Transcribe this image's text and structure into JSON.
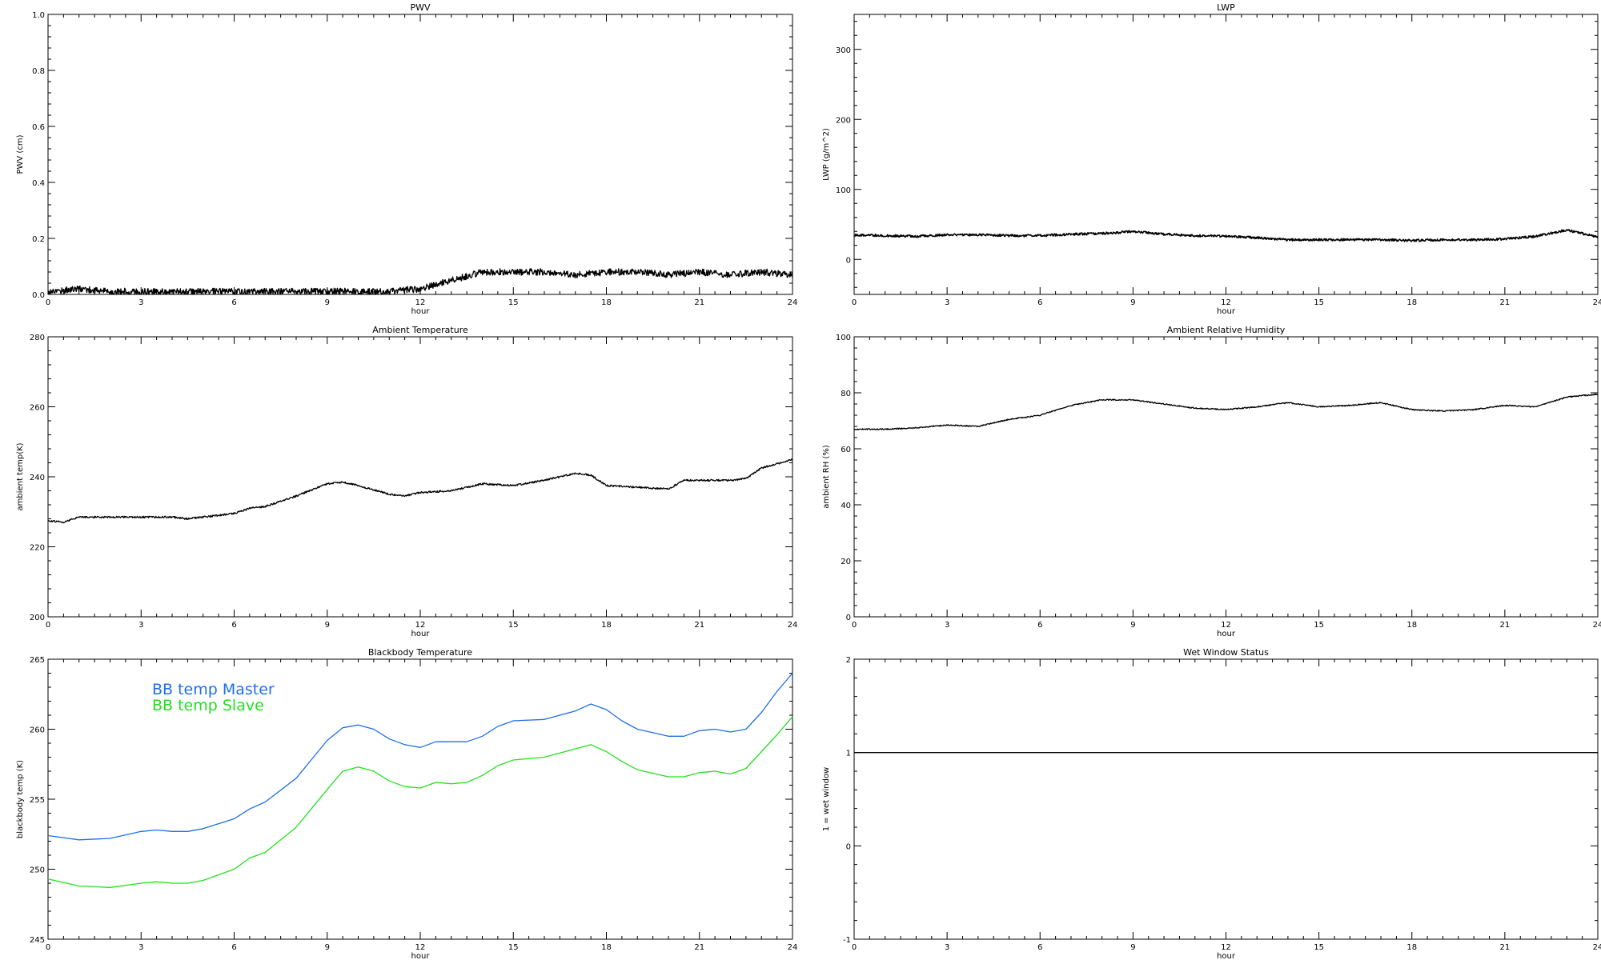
{
  "chart_data": [
    {
      "id": "pwv",
      "type": "line",
      "title": "PWV",
      "xlabel": "hour",
      "ylabel": "PWV (cm)",
      "xlim": [
        0,
        24
      ],
      "ylim": [
        0.0,
        1.0
      ],
      "xticks": [
        0,
        3,
        6,
        9,
        12,
        15,
        18,
        21,
        24
      ],
      "yticks": [
        0.0,
        0.2,
        0.4,
        0.6,
        0.8,
        1.0
      ],
      "ytick_labels": [
        "0.0",
        "0.2",
        "0.4",
        "0.6",
        "0.8",
        "1.0"
      ],
      "noise": 0.012,
      "series": [
        {
          "color": "#000000",
          "x": [
            0,
            1,
            2,
            3,
            4,
            5,
            6,
            7,
            8,
            9,
            10,
            11,
            12,
            13,
            14,
            15,
            16,
            17,
            18,
            19,
            20,
            21,
            22,
            23,
            24
          ],
          "y": [
            0.01,
            0.02,
            0.01,
            0.01,
            0.01,
            0.01,
            0.01,
            0.01,
            0.01,
            0.01,
            0.01,
            0.01,
            0.02,
            0.05,
            0.08,
            0.08,
            0.08,
            0.07,
            0.08,
            0.08,
            0.07,
            0.08,
            0.07,
            0.08,
            0.07
          ]
        }
      ]
    },
    {
      "id": "lwp",
      "type": "line",
      "title": "LWP",
      "xlabel": "hour",
      "ylabel": "LWP (g/m^2)",
      "xlim": [
        0,
        24
      ],
      "ylim": [
        -50,
        350
      ],
      "xticks": [
        0,
        3,
        6,
        9,
        12,
        15,
        18,
        21,
        24
      ],
      "yticks": [
        0,
        100,
        200,
        300
      ],
      "ytick_labels": [
        "0",
        "100",
        "200",
        "300"
      ],
      "noise": 1.6,
      "series": [
        {
          "color": "#000000",
          "x": [
            0,
            1,
            2,
            3,
            4,
            5,
            6,
            7,
            8,
            9,
            10,
            11,
            12,
            13,
            14,
            15,
            16,
            17,
            18,
            19,
            20,
            21,
            22,
            23,
            24
          ],
          "y": [
            35,
            34,
            33,
            35,
            35,
            34,
            34,
            36,
            37,
            40,
            36,
            34,
            33,
            31,
            28,
            28,
            28,
            28,
            27,
            28,
            28,
            29,
            33,
            42,
            32
          ]
        }
      ]
    },
    {
      "id": "ambient-temperature",
      "type": "line",
      "title": "Ambient Temperature",
      "xlabel": "hour",
      "ylabel": "ambient temp(K)",
      "xlim": [
        0,
        24
      ],
      "ylim": [
        200,
        280
      ],
      "xticks": [
        0,
        3,
        6,
        9,
        12,
        15,
        18,
        21,
        24
      ],
      "yticks": [
        200,
        220,
        240,
        260,
        280
      ],
      "ytick_labels": [
        "200",
        "220",
        "240",
        "260",
        "280"
      ],
      "noise": 0.25,
      "series": [
        {
          "color": "#000000",
          "x": [
            0,
            0.5,
            1,
            2,
            3,
            4,
            4.5,
            5,
            6,
            6.5,
            7,
            8,
            9,
            9.5,
            10,
            11,
            11.5,
            12,
            13,
            14,
            15,
            16,
            17,
            17.5,
            18,
            19,
            20,
            20.5,
            21,
            22,
            22.5,
            23,
            24
          ],
          "y": [
            227.5,
            227,
            228.5,
            228.5,
            228.5,
            228.5,
            228,
            228.5,
            229.5,
            231,
            231.5,
            234.5,
            238,
            238.5,
            237.5,
            235,
            234.5,
            235.5,
            236,
            238,
            237.5,
            239,
            241,
            240.5,
            237.5,
            237,
            236.5,
            239,
            239,
            239,
            239.5,
            242.5,
            245
          ]
        }
      ]
    },
    {
      "id": "ambient-relative-humidity",
      "type": "line",
      "title": "Ambient Relative Humidity",
      "xlabel": "hour",
      "ylabel": "ambient RH (%)",
      "xlim": [
        0,
        24
      ],
      "ylim": [
        0,
        100
      ],
      "xticks": [
        0,
        3,
        6,
        9,
        12,
        15,
        18,
        21,
        24
      ],
      "yticks": [
        0,
        20,
        40,
        60,
        80,
        100
      ],
      "ytick_labels": [
        "0",
        "20",
        "40",
        "60",
        "80",
        "100"
      ],
      "noise": 0.2,
      "series": [
        {
          "color": "#000000",
          "x": [
            0,
            1,
            2,
            3,
            4,
            5,
            6,
            7,
            8,
            9,
            10,
            11,
            12,
            13,
            14,
            15,
            16,
            17,
            18,
            19,
            20,
            21,
            22,
            23,
            24
          ],
          "y": [
            67,
            67,
            67.5,
            68.5,
            68,
            70.5,
            72,
            75.5,
            77.5,
            77.5,
            76,
            74.5,
            74,
            75,
            76.5,
            75,
            75.5,
            76.5,
            74,
            73.5,
            74,
            75.5,
            75,
            78.5,
            79.5
          ]
        }
      ]
    },
    {
      "id": "blackbody-temperature",
      "type": "line",
      "title": "Blackbody Temperature",
      "xlabel": "hour",
      "ylabel": "blackbody temp (K)",
      "xlim": [
        0,
        24
      ],
      "ylim": [
        245,
        265
      ],
      "xticks": [
        0,
        3,
        6,
        9,
        12,
        15,
        18,
        21,
        24
      ],
      "yticks": [
        245,
        250,
        255,
        260,
        265
      ],
      "ytick_labels": [
        "245",
        "250",
        "255",
        "260",
        "265"
      ],
      "noise": 0,
      "series": [
        {
          "name": "BB temp Master",
          "color": "#1e6fe8",
          "x": [
            0,
            1,
            2,
            3,
            3.5,
            4,
            4.5,
            5,
            6,
            6.5,
            7,
            8,
            9,
            9.5,
            10,
            10.5,
            11,
            11.5,
            12,
            12.5,
            13,
            13.5,
            14,
            14.5,
            15,
            16,
            17,
            17.5,
            18,
            18.5,
            19,
            20,
            20.5,
            21,
            21.5,
            22,
            22.5,
            23,
            23.5,
            24
          ],
          "y": [
            252.4,
            252.1,
            252.2,
            252.7,
            252.8,
            252.7,
            252.7,
            252.9,
            253.6,
            254.3,
            254.8,
            256.5,
            259.2,
            260.1,
            260.3,
            260.0,
            259.3,
            258.9,
            258.7,
            259.1,
            259.1,
            259.1,
            259.5,
            260.2,
            260.6,
            260.7,
            261.3,
            261.8,
            261.4,
            260.6,
            260.0,
            259.5,
            259.5,
            259.9,
            260.0,
            259.8,
            260.0,
            261.2,
            262.7,
            264.0
          ]
        },
        {
          "name": "BB temp Slave",
          "color": "#22e01e",
          "x": [
            0,
            1,
            2,
            3,
            3.5,
            4,
            4.5,
            5,
            6,
            6.5,
            7,
            8,
            9,
            9.5,
            10,
            10.5,
            11,
            11.5,
            12,
            12.5,
            13,
            13.5,
            14,
            14.5,
            15,
            16,
            17,
            17.5,
            18,
            18.5,
            19,
            20,
            20.5,
            21,
            21.5,
            22,
            22.5,
            23,
            23.5,
            24
          ],
          "y": [
            249.3,
            248.8,
            248.7,
            249.0,
            249.1,
            249.0,
            249.0,
            249.2,
            250.0,
            250.8,
            251.2,
            253.0,
            255.7,
            257.0,
            257.3,
            257.0,
            256.3,
            255.9,
            255.8,
            256.2,
            256.1,
            256.2,
            256.7,
            257.4,
            257.8,
            258.0,
            258.6,
            258.9,
            258.4,
            257.7,
            257.1,
            256.6,
            256.6,
            256.9,
            257.0,
            256.8,
            257.2,
            258.4,
            259.6,
            260.9
          ]
        }
      ]
    },
    {
      "id": "wet-window-status",
      "type": "line",
      "title": "Wet Window Status",
      "xlabel": "hour",
      "ylabel": "1 = wet window",
      "xlim": [
        0,
        24
      ],
      "ylim": [
        -1,
        2
      ],
      "xticks": [
        0,
        3,
        6,
        9,
        12,
        15,
        18,
        21,
        24
      ],
      "yticks": [
        -1,
        0,
        1,
        2
      ],
      "ytick_labels": [
        "-1",
        "0",
        "1",
        "2"
      ],
      "noise": 0,
      "series": [
        {
          "color": "#000000",
          "x": [
            0,
            24
          ],
          "y": [
            1,
            1
          ]
        }
      ]
    }
  ]
}
